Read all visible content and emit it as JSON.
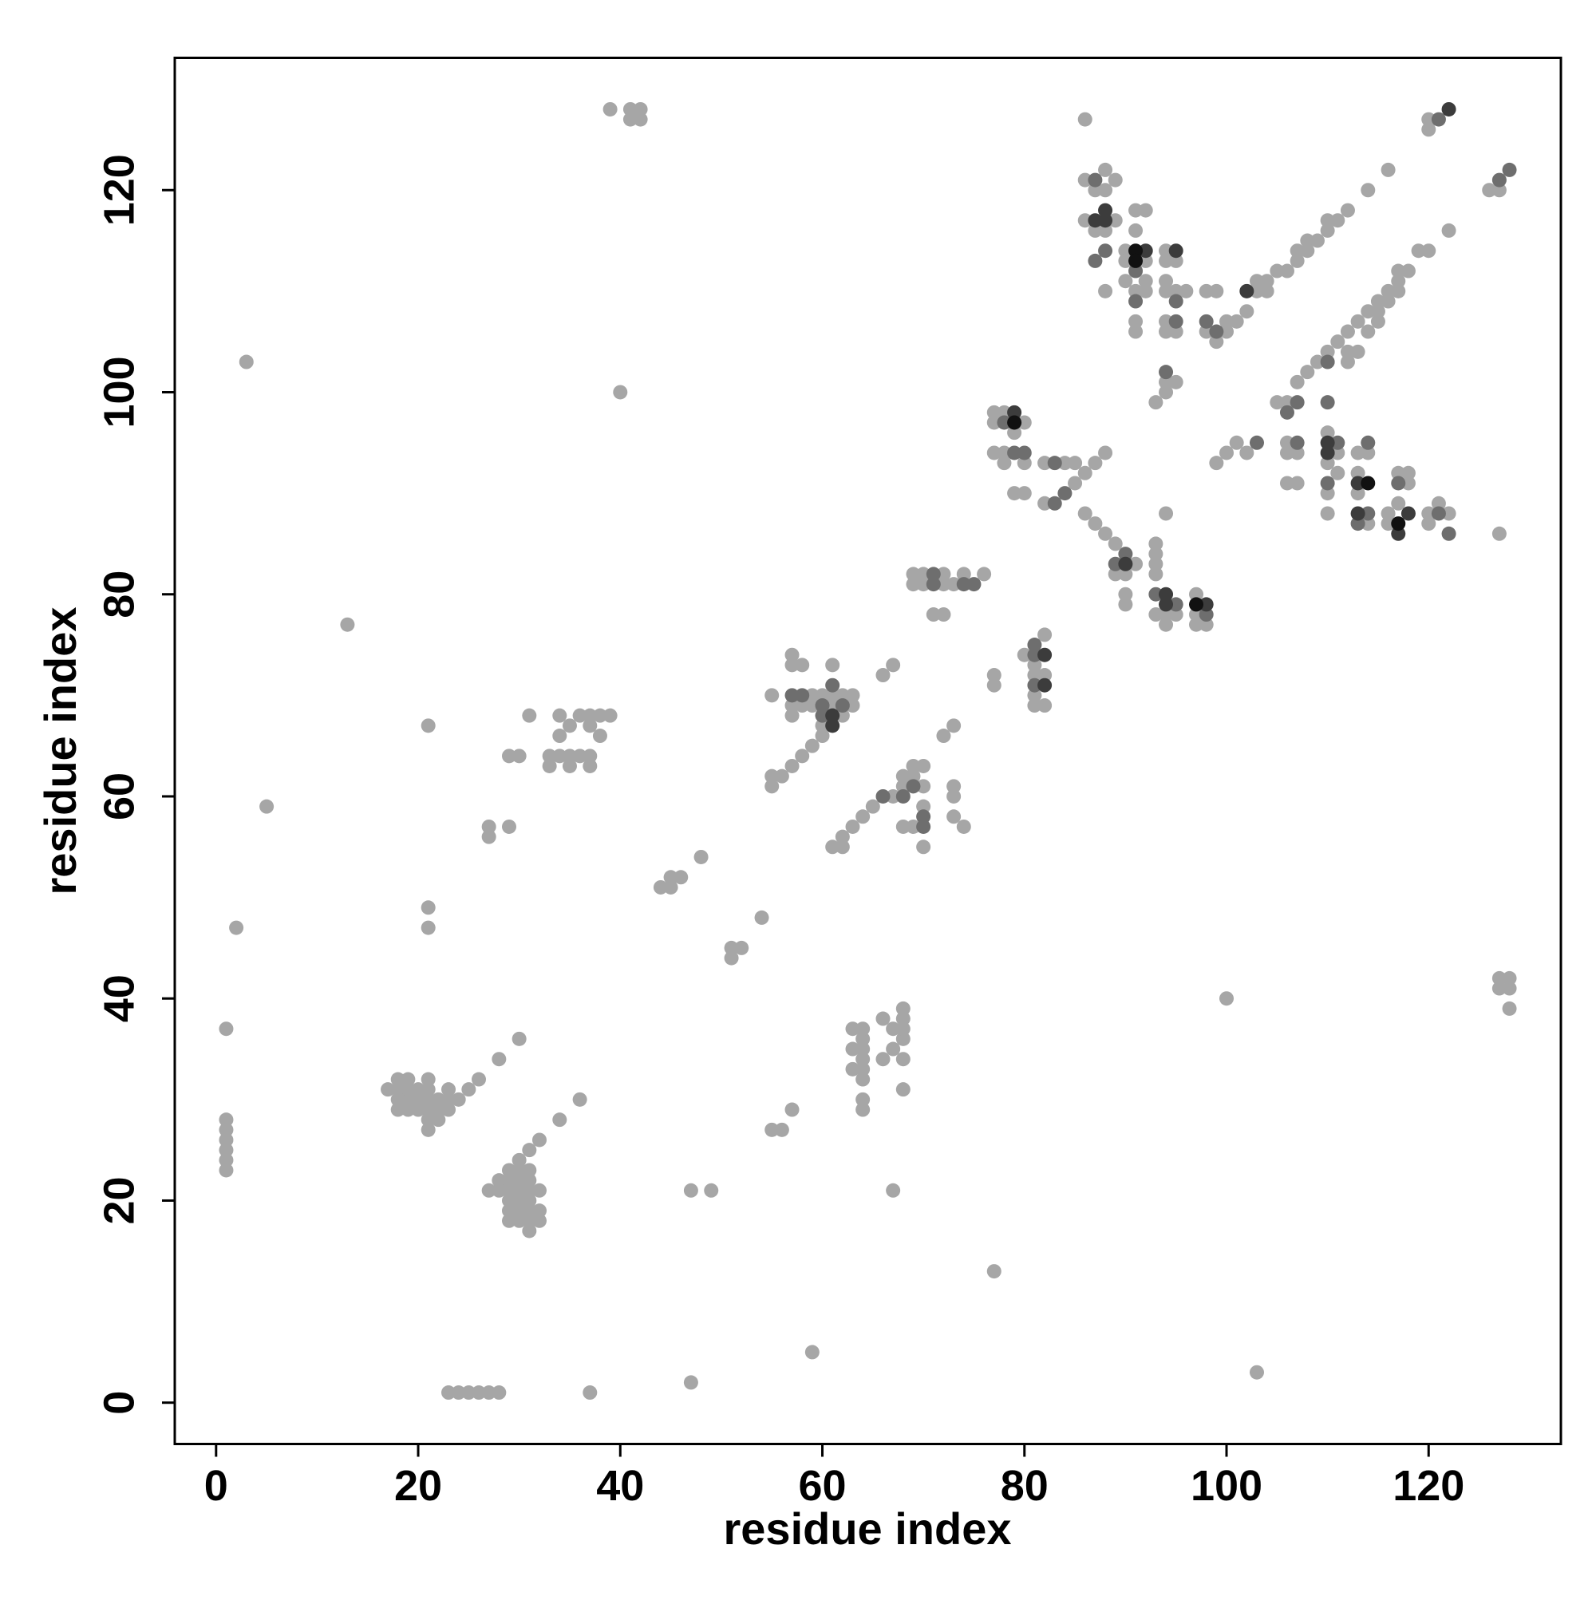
{
  "chart_data": {
    "type": "scatter",
    "x_label": "residue index",
    "y_label": "residue index",
    "xlim": [
      -4.09,
      133.09
    ],
    "ylim": [
      -4.09,
      133.09
    ],
    "xticks": [
      0,
      20,
      40,
      60,
      80,
      100,
      120
    ],
    "yticks": [
      0,
      20,
      40,
      60,
      80,
      100,
      120
    ],
    "series": [
      {
        "color": "#a6a6a6",
        "x": [
          23,
          24,
          25,
          26,
          27,
          28,
          37,
          47,
          59,
          103,
          77,
          1,
          1,
          1,
          1,
          1,
          1,
          1,
          2,
          3,
          5,
          13,
          21,
          21,
          21,
          17,
          18,
          18,
          18,
          18,
          19,
          19,
          19,
          19,
          20,
          20,
          20,
          21,
          21,
          21,
          21,
          21,
          21,
          22,
          22,
          22,
          23,
          23,
          23,
          24,
          25,
          26,
          28,
          30,
          27,
          28,
          28,
          29,
          29,
          29,
          29,
          29,
          29,
          30,
          30,
          30,
          30,
          30,
          30,
          30,
          31,
          31,
          31,
          31,
          31,
          31,
          31,
          31,
          32,
          32,
          32,
          32,
          34,
          36,
          27,
          27,
          29,
          29,
          30,
          31,
          33,
          33,
          34,
          34,
          34,
          35,
          35,
          35,
          36,
          36,
          37,
          37,
          37,
          37,
          38,
          38,
          39,
          39,
          40,
          41,
          41,
          42,
          42,
          44,
          45,
          45,
          46,
          48,
          47,
          49,
          51,
          51,
          52,
          54,
          55,
          56,
          57,
          55,
          55,
          56,
          57,
          58,
          55,
          57,
          57,
          57,
          57,
          58,
          58,
          59,
          59,
          59,
          60,
          60,
          60,
          61,
          61,
          61,
          62,
          62,
          63,
          63,
          61,
          62,
          62,
          63,
          64,
          65,
          67,
          68,
          68,
          69,
          69,
          70,
          70,
          68,
          69,
          70,
          70,
          66,
          67,
          72,
          73,
          73,
          73,
          73,
          74,
          63,
          63,
          63,
          64,
          64,
          64,
          64,
          64,
          64,
          64,
          64,
          66,
          66,
          67,
          67,
          67,
          68,
          68,
          68,
          68,
          68,
          68,
          69,
          69,
          70,
          70,
          72,
          72,
          73,
          74,
          76,
          71,
          72,
          77,
          77,
          80,
          81,
          81,
          82,
          81,
          81,
          82,
          82,
          77,
          77,
          77,
          78,
          78,
          78,
          79,
          80,
          80,
          80,
          79,
          82,
          82,
          84,
          85,
          85,
          86,
          87,
          88,
          86,
          86,
          86,
          87,
          87,
          88,
          88,
          88,
          88,
          89,
          89,
          90,
          90,
          90,
          91,
          91,
          91,
          91,
          91,
          92,
          92,
          92,
          92,
          94,
          94,
          94,
          94,
          94,
          94,
          94,
          95,
          95,
          95,
          96,
          93,
          94,
          95,
          98,
          98,
          99,
          99,
          100,
          100,
          101,
          102,
          103,
          103,
          104,
          104,
          105,
          106,
          107,
          107,
          108,
          108,
          109,
          110,
          110,
          111,
          112,
          114,
          116,
          120,
          120,
          126,
          127,
          86,
          87,
          88,
          89,
          91,
          89,
          90,
          90,
          90,
          93,
          93,
          93,
          93,
          94,
          94,
          95,
          93,
          94,
          97,
          97,
          97,
          98,
          99,
          100,
          101,
          102,
          105,
          106,
          106,
          106,
          106,
          107,
          107,
          107,
          108,
          109,
          110,
          110,
          110,
          110,
          110,
          111,
          111,
          111,
          112,
          113,
          113,
          113,
          113,
          114,
          114,
          114,
          115,
          115,
          116,
          117,
          117,
          118,
          119,
          120,
          122,
          116,
          116,
          117,
          117,
          118,
          118,
          120,
          120,
          121,
          122,
          127,
          112,
          112,
          113,
          114,
          115,
          116,
          117,
          127,
          127,
          128,
          128,
          128,
          100
        ],
        "values": [
          1,
          1,
          1,
          1,
          1,
          1,
          1,
          2,
          5,
          3,
          13,
          23,
          24,
          25,
          26,
          27,
          28,
          37,
          47,
          103,
          59,
          77,
          67,
          49,
          47,
          31,
          29,
          30,
          31,
          32,
          29,
          30,
          31,
          32,
          29,
          30,
          31,
          28,
          29,
          30,
          31,
          32,
          27,
          28,
          29,
          30,
          29,
          30,
          31,
          30,
          31,
          32,
          34,
          36,
          21,
          21,
          22,
          18,
          19,
          20,
          21,
          22,
          23,
          18,
          19,
          20,
          21,
          22,
          23,
          24,
          17,
          18,
          19,
          20,
          21,
          22,
          23,
          25,
          18,
          19,
          21,
          26,
          28,
          30,
          56,
          57,
          57,
          64,
          64,
          68,
          63,
          64,
          64,
          66,
          68,
          63,
          64,
          67,
          64,
          68,
          63,
          64,
          67,
          68,
          66,
          68,
          68,
          128,
          100,
          127,
          128,
          127,
          128,
          51,
          51,
          52,
          52,
          54,
          21,
          21,
          44,
          45,
          45,
          48,
          27,
          27,
          29,
          61,
          62,
          62,
          63,
          64,
          70,
          68,
          69,
          73,
          74,
          69,
          73,
          65,
          69,
          70,
          66,
          67,
          70,
          69,
          70,
          73,
          68,
          70,
          69,
          70,
          55,
          55,
          56,
          57,
          58,
          59,
          60,
          61,
          62,
          62,
          63,
          63,
          55,
          57,
          57,
          59,
          61,
          72,
          73,
          66,
          67,
          60,
          61,
          58,
          57,
          33,
          35,
          37,
          29,
          30,
          32,
          33,
          34,
          35,
          36,
          37,
          34,
          38,
          35,
          37,
          21,
          31,
          34,
          36,
          37,
          38,
          39,
          81,
          82,
          81,
          82,
          82,
          81,
          81,
          82,
          82,
          78,
          78,
          71,
          72,
          74,
          70,
          69,
          69,
          72,
          73,
          76,
          72,
          98,
          97,
          94,
          98,
          94,
          93,
          96,
          97,
          93,
          90,
          90,
          89,
          93,
          93,
          93,
          91,
          92,
          93,
          94,
          127,
          121,
          117,
          120,
          116,
          122,
          120,
          116,
          110,
          121,
          117,
          114,
          113,
          111,
          118,
          116,
          110,
          106,
          107,
          118,
          111,
          110,
          113,
          114,
          113,
          111,
          110,
          107,
          106,
          101,
          106,
          113,
          110,
          110,
          99,
          100,
          101,
          110,
          106,
          110,
          105,
          106,
          107,
          107,
          108,
          110,
          111,
          111,
          110,
          112,
          112,
          113,
          114,
          114,
          115,
          115,
          116,
          117,
          117,
          118,
          120,
          122,
          126,
          127,
          120,
          120,
          88,
          87,
          86,
          85,
          83,
          82,
          82,
          79,
          80,
          82,
          84,
          85,
          78,
          77,
          78,
          78,
          83,
          88,
          80,
          78,
          77,
          77,
          93,
          94,
          95,
          94,
          99,
          99,
          95,
          94,
          91,
          101,
          94,
          91,
          102,
          103,
          104,
          96,
          93,
          90,
          88,
          105,
          94,
          92,
          106,
          107,
          94,
          92,
          90,
          108,
          94,
          87,
          108,
          109,
          110,
          111,
          112,
          112,
          114,
          114,
          116,
          88,
          87,
          92,
          89,
          92,
          91,
          88,
          87,
          89,
          88,
          86,
          103,
          104,
          104,
          106,
          107,
          109,
          110,
          41,
          42,
          41,
          42,
          39,
          40
        ]
      },
      {
        "color": "#6e6e6e",
        "x": [
          57,
          58,
          60,
          60,
          61,
          62,
          66,
          68,
          69,
          70,
          70,
          71,
          71,
          74,
          75,
          81,
          81,
          81,
          78,
          79,
          80,
          83,
          84,
          83,
          87,
          88,
          87,
          91,
          91,
          94,
          95,
          95,
          98,
          99,
          121,
          128,
          127,
          89,
          90,
          93,
          95,
          98,
          103,
          106,
          107,
          110,
          110,
          110,
          111,
          113,
          114,
          114,
          117,
          121,
          122,
          107
        ],
        "values": [
          70,
          70,
          68,
          69,
          71,
          69,
          60,
          60,
          61,
          57,
          58,
          82,
          81,
          81,
          81,
          74,
          71,
          75,
          97,
          94,
          94,
          89,
          90,
          93,
          121,
          114,
          113,
          112,
          109,
          102,
          107,
          109,
          107,
          106,
          127,
          122,
          121,
          83,
          84,
          80,
          79,
          78,
          95,
          98,
          99,
          99,
          103,
          91,
          95,
          87,
          88,
          95,
          91,
          88,
          86,
          95
        ]
      },
      {
        "color": "#3c3c3c",
        "x": [
          61,
          61,
          79,
          82,
          82,
          88,
          88,
          87,
          92,
          95,
          90,
          94,
          94,
          98,
          110,
          110,
          113,
          113,
          117,
          118,
          102,
          122
        ],
        "values": [
          67,
          68,
          98,
          71,
          74,
          117,
          118,
          117,
          114,
          114,
          83,
          80,
          79,
          79,
          95,
          94,
          91,
          88,
          86,
          88,
          110,
          128
        ]
      },
      {
        "color": "#111111",
        "x": [
          79,
          91,
          91,
          97,
          114,
          117
        ],
        "values": [
          97,
          114,
          113,
          79,
          91,
          87
        ]
      }
    ]
  }
}
